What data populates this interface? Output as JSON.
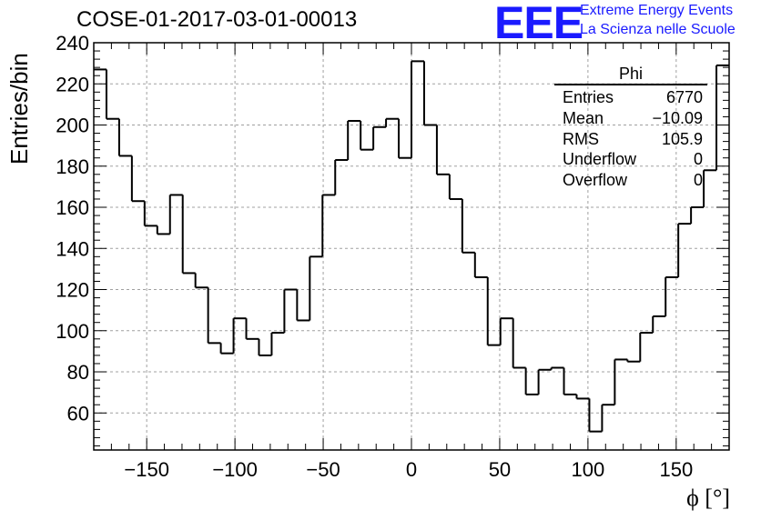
{
  "header": {
    "title": "COSE-01-2017-03-01-00013",
    "logo_text": "EEE",
    "org_line1": "Extreme Energy Events",
    "org_line2": "La Scienza nelle Scuole"
  },
  "stats_box": {
    "title": "Phi",
    "rows": [
      {
        "label": "Entries",
        "value": "6770"
      },
      {
        "label": "Mean",
        "value": "−10.09"
      },
      {
        "label": "RMS",
        "value": "105.9"
      },
      {
        "label": "Underflow",
        "value": "0"
      },
      {
        "label": "Overflow",
        "value": "0"
      }
    ]
  },
  "chart_data": {
    "type": "histogram",
    "title": "COSE-01-2017-03-01-00013",
    "xlabel": "ϕ [°]",
    "ylabel": "Entries/bin",
    "xlim": [
      -180,
      180
    ],
    "ylim": [
      42,
      240
    ],
    "bin_width": 7.2,
    "xticks": [
      -150,
      -100,
      -50,
      0,
      50,
      100,
      150
    ],
    "xtick_labels": [
      "−150",
      "−100",
      "−50",
      "0",
      "50",
      "100",
      "150"
    ],
    "yticks": [
      60,
      80,
      100,
      120,
      140,
      160,
      180,
      200,
      220,
      240
    ],
    "grid": true,
    "legend": "top-right stats box",
    "line_color": "#000000",
    "values": [
      227,
      203,
      185,
      163,
      151,
      147,
      166,
      128,
      121,
      94,
      89,
      106,
      96,
      88,
      99,
      120,
      105,
      136,
      166,
      183,
      202,
      188,
      199,
      203,
      184,
      231,
      200,
      176,
      164,
      138,
      126,
      93,
      106,
      82,
      69,
      81,
      82,
      69,
      67,
      51,
      64,
      86,
      85,
      99,
      107,
      126,
      152,
      160,
      178,
      229
    ]
  }
}
